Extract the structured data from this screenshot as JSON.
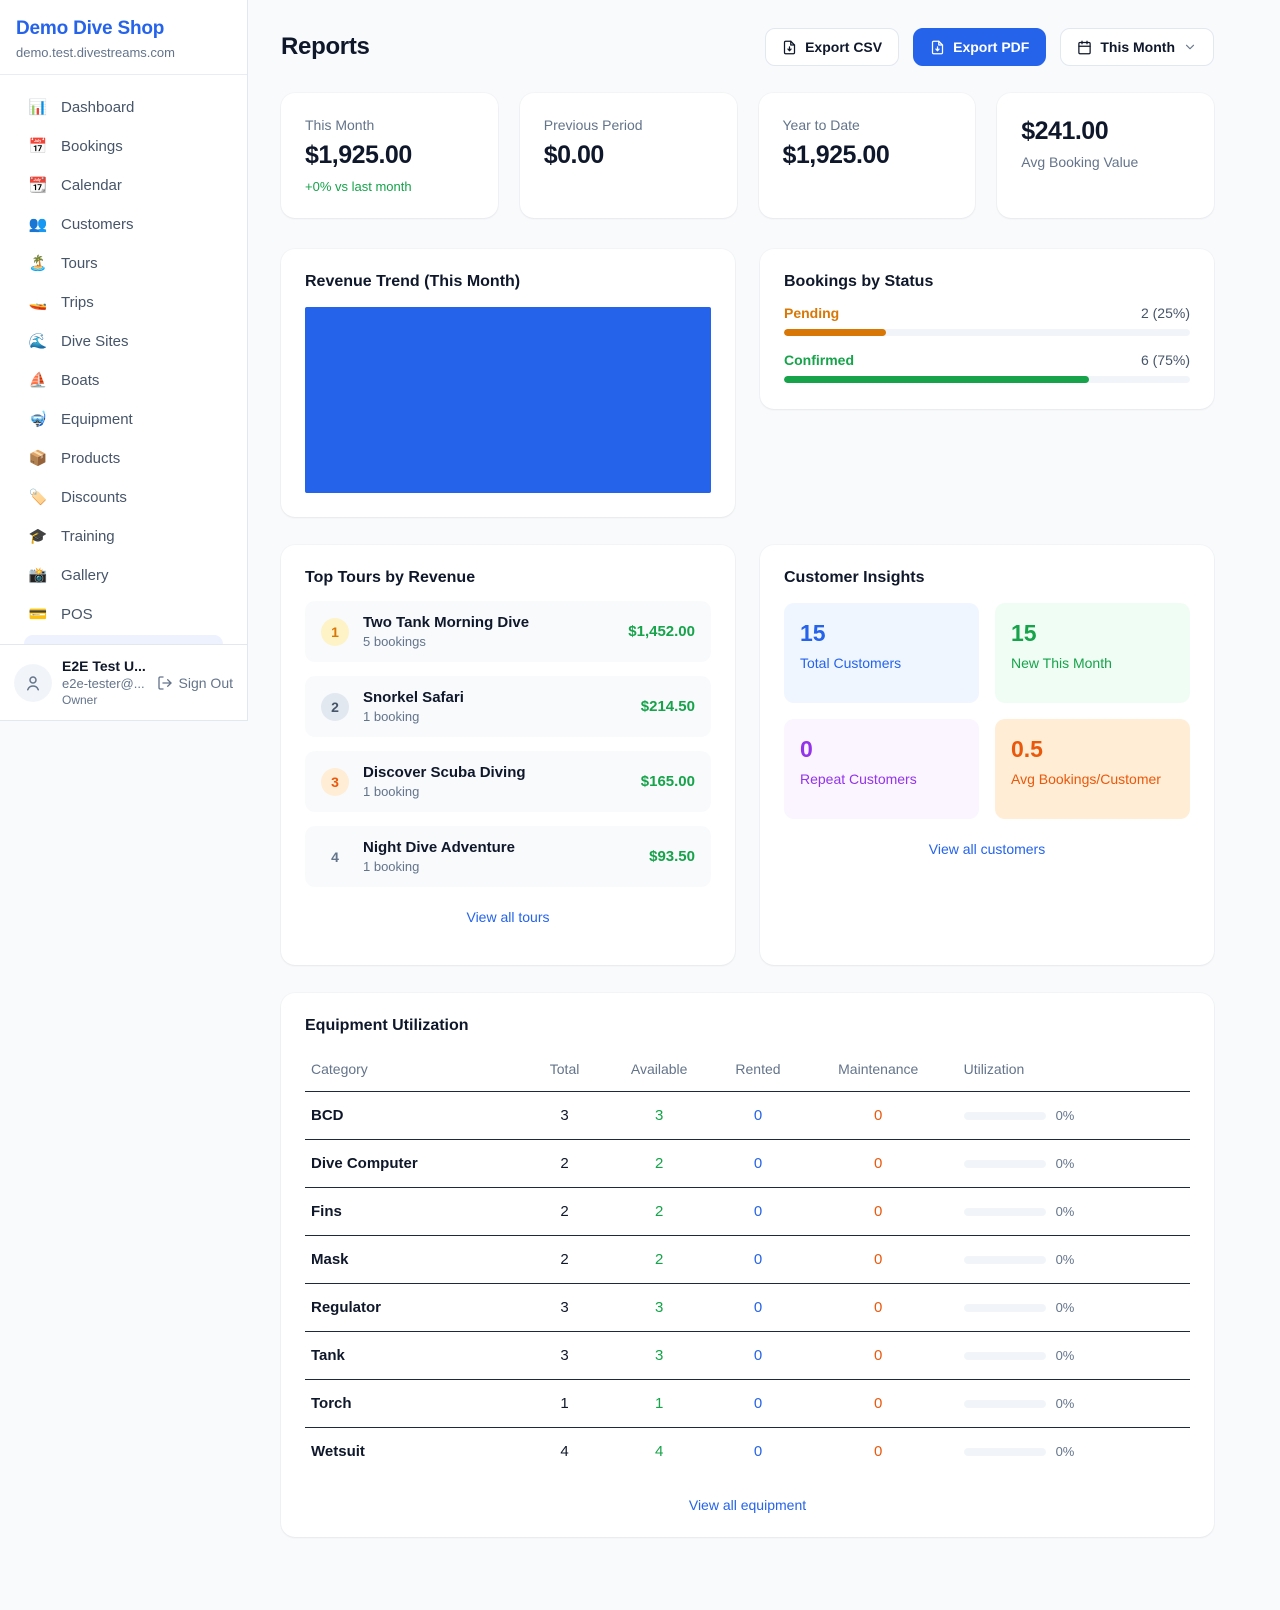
{
  "colors": {
    "accent_blue": "#2563eb",
    "green": "#16a34a",
    "amber": "#d97706",
    "orange": "#ea580c",
    "purple": "#9333ea",
    "page_background": "#f8fafc"
  },
  "sidebar": {
    "brand": {
      "name": "Demo Dive Shop",
      "domain": "demo.test.divestreams.com"
    },
    "items": [
      {
        "emoji": "📊",
        "label": "Dashboard"
      },
      {
        "emoji": "📅",
        "label": "Bookings"
      },
      {
        "emoji": "📆",
        "label": "Calendar"
      },
      {
        "emoji": "👥",
        "label": "Customers"
      },
      {
        "emoji": "🏝️",
        "label": "Tours"
      },
      {
        "emoji": "🚤",
        "label": "Trips"
      },
      {
        "emoji": "🌊",
        "label": "Dive Sites"
      },
      {
        "emoji": "⛵",
        "label": "Boats"
      },
      {
        "emoji": "🤿",
        "label": "Equipment"
      },
      {
        "emoji": "📦",
        "label": "Products"
      },
      {
        "emoji": "🏷️",
        "label": "Discounts"
      },
      {
        "emoji": "🎓",
        "label": "Training"
      },
      {
        "emoji": "📸",
        "label": "Gallery"
      },
      {
        "emoji": "💳",
        "label": "POS"
      }
    ],
    "user": {
      "name": "E2E Test U...",
      "email": "e2e-tester@...",
      "role": "Owner",
      "sign_out_label": "Sign Out"
    }
  },
  "header": {
    "title": "Reports",
    "export_csv_label": "Export CSV",
    "export_pdf_label": "Export PDF",
    "period_label": "This Month"
  },
  "stats": [
    {
      "label": "This Month",
      "value": "$1,925.00",
      "delta": "+0% vs last month"
    },
    {
      "label": "Previous Period",
      "value": "$0.00"
    },
    {
      "label": "Year to Date",
      "value": "$1,925.00"
    },
    {
      "label": "Avg Booking Value",
      "value": "$241.00"
    }
  ],
  "revenue_trend": {
    "title": "Revenue Trend (This Month)",
    "bar_color": "#2563eb"
  },
  "bookings_by_status": {
    "title": "Bookings by Status",
    "rows": [
      {
        "label": "Pending",
        "count_text": "2 (25%)",
        "percent": 25,
        "color": "#d97706"
      },
      {
        "label": "Confirmed",
        "count_text": "6 (75%)",
        "percent": 75,
        "color": "#16a34a"
      }
    ]
  },
  "top_tours": {
    "title": "Top Tours by Revenue",
    "rows": [
      {
        "rank": "1",
        "name": "Two Tank Morning Dive",
        "bookings": "5 bookings",
        "amount": "$1,452.00"
      },
      {
        "rank": "2",
        "name": "Snorkel Safari",
        "bookings": "1 booking",
        "amount": "$214.50"
      },
      {
        "rank": "3",
        "name": "Discover Scuba Diving",
        "bookings": "1 booking",
        "amount": "$165.00"
      },
      {
        "rank": "4",
        "name": "Night Dive Adventure",
        "bookings": "1 booking",
        "amount": "$93.50"
      }
    ],
    "view_all_label": "View all tours"
  },
  "customer_insights": {
    "title": "Customer Insights",
    "tiles": [
      {
        "value": "15",
        "label": "Total Customers"
      },
      {
        "value": "15",
        "label": "New This Month"
      },
      {
        "value": "0",
        "label": "Repeat Customers"
      },
      {
        "value": "0.5",
        "label": "Avg Bookings/Customer"
      }
    ],
    "view_all_label": "View all customers"
  },
  "equipment": {
    "title": "Equipment Utilization",
    "columns": [
      "Category",
      "Total",
      "Available",
      "Rented",
      "Maintenance",
      "Utilization"
    ],
    "rows": [
      {
        "category": "BCD",
        "total": "3",
        "available": "3",
        "rented": "0",
        "maintenance": "0",
        "utilization_text": "0%",
        "utilization_percent": 0
      },
      {
        "category": "Dive Computer",
        "total": "2",
        "available": "2",
        "rented": "0",
        "maintenance": "0",
        "utilization_text": "0%",
        "utilization_percent": 0
      },
      {
        "category": "Fins",
        "total": "2",
        "available": "2",
        "rented": "0",
        "maintenance": "0",
        "utilization_text": "0%",
        "utilization_percent": 0
      },
      {
        "category": "Mask",
        "total": "2",
        "available": "2",
        "rented": "0",
        "maintenance": "0",
        "utilization_text": "0%",
        "utilization_percent": 0
      },
      {
        "category": "Regulator",
        "total": "3",
        "available": "3",
        "rented": "0",
        "maintenance": "0",
        "utilization_text": "0%",
        "utilization_percent": 0
      },
      {
        "category": "Tank",
        "total": "3",
        "available": "3",
        "rented": "0",
        "maintenance": "0",
        "utilization_text": "0%",
        "utilization_percent": 0
      },
      {
        "category": "Torch",
        "total": "1",
        "available": "1",
        "rented": "0",
        "maintenance": "0",
        "utilization_text": "0%",
        "utilization_percent": 0
      },
      {
        "category": "Wetsuit",
        "total": "4",
        "available": "4",
        "rented": "0",
        "maintenance": "0",
        "utilization_text": "0%",
        "utilization_percent": 0
      }
    ],
    "view_all_label": "View all equipment"
  }
}
